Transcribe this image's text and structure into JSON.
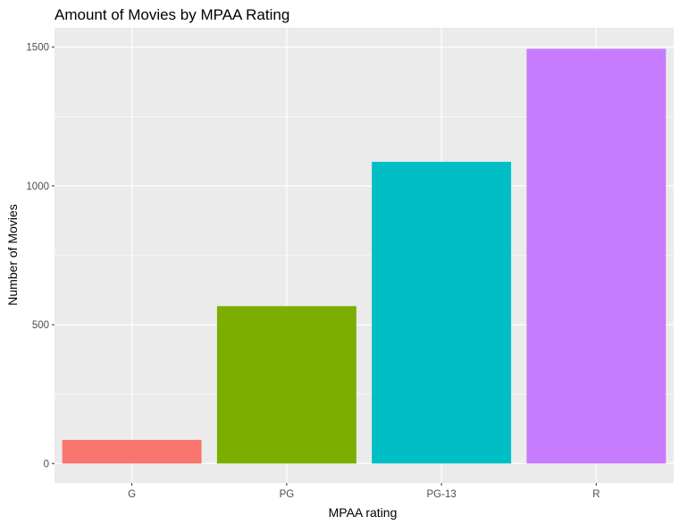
{
  "chart_data": {
    "type": "bar",
    "title": "Amount of Movies by MPAA Rating",
    "xlabel": "MPAA rating",
    "ylabel": "Number of Movies",
    "categories": [
      "G",
      "PG",
      "PG-13",
      "R"
    ],
    "values": [
      85,
      567,
      1087,
      1494
    ],
    "colors": [
      "#F8766D",
      "#7CAE00",
      "#00BFC4",
      "#C77CFF"
    ],
    "ylim": [
      -70,
      1570
    ],
    "y_ticks": [
      0,
      500,
      1000,
      1500
    ],
    "y_tick_labels": [
      "0",
      "500",
      "1000",
      "1500"
    ],
    "grid": true,
    "legend": "none",
    "panel_background": "#EBEBEB",
    "grid_color": "#FFFFFF"
  }
}
